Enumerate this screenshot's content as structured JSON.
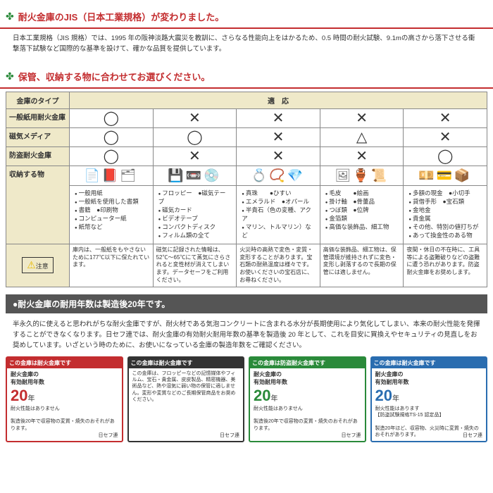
{
  "header1": {
    "title": "耐火金庫のJIS（日本工業規格）が変わりました。",
    "text": "日本工業規格（JIS 規格）では、1995 年の阪神淡路大震災を教訓に、さらなる性能向上をはかるため、0.5 時間の耐火試験、9.1mの高さから落下させる衝撃落下試験など国際的な基準を設けて、確かな品質を提供しています。"
  },
  "header2": {
    "title": "保管、収納する物に合わせてお選びください。"
  },
  "table": {
    "col_type": "金庫のタイプ",
    "col_compat": "適　応",
    "rows": [
      "一般紙用耐火金庫",
      "磁気メディア",
      "防盗耐火金庫"
    ],
    "storage_label": "収納する物",
    "caution_label": "注意",
    "items": {
      "c0": [
        "一般用紙",
        "一般紙を使用した書類",
        "書籍　●印刷物",
        "コンピューター紙",
        "紙幣など"
      ],
      "c1": [
        "フロッピー　●磁気テープ",
        "磁気カード",
        "ビデオテープ",
        "コンパクトディスク",
        "フィルム類の全て"
      ],
      "c2": [
        "真珠　　●ひすい",
        "エメラルド　●オパール",
        "半貴石（色の変種、アクア",
        "マリン、トルマリン）など"
      ],
      "c3": [
        "毛皮　　●絵画",
        "掛け軸　●骨董品",
        "つぼ類　●位牌",
        "金箔類",
        "高価な装飾品、細工物"
      ],
      "c4": [
        "多額の現金　●小切手",
        "貸借手形　●宝石類",
        "金地金",
        "貴金属",
        "その他、特別の値打ちが",
        "あって換金性のある物"
      ]
    },
    "notes": {
      "c0": "庫内は、一般紙をもやさないために177℃以下に保たれています。",
      "c1": "磁気に記録された情報は、52℃～65℃にて蒸気にさらされると変性材が消えてしまいます。データセーフをご利用ください。",
      "c2": "火災時の高熱で変色・変質・変形することがあります。宝石類の耐熱温度は様々です。お使いくださいの宝石店に、お尋ねください。",
      "c3": "高価な装飾品、細工物は、保管環境が維持されずに変色・変形し剥落するので長期の保管には適しません。",
      "c4": "夜間・休日の不在時に、工具等による盗難破りなどの盗難に遭う恐れがあります。防盗耐火金庫をお奨めします。"
    }
  },
  "bar": "●耐火金庫の耐用年数は製造後20年です。",
  "body_text": "半永久的に使えると思われがちな耐火金庫ですが、耐火材である気泡コンクリートに含まれる水分が長期使用により気化してしまい、本来の耐火性能を発揮することができなくなります。日セフ連では、耐火金庫の有効耐火耐用年数の基準を製造後 20 年として、これを目安に買換えやセキュリティの見直しをお奨めしています。いざという時のために、お使いになっている金庫の製造年数をご確認ください。",
  "cards": [
    {
      "border": "#c32d2f",
      "top_bg": "#c32d2f",
      "top": "この金庫は耐火金庫です",
      "num_color": "#c32d2f",
      "label": "耐火金庫の\n有効耐用年数",
      "num": "20",
      "unit": "年",
      "body": "耐火性能はありません\n\n製造後20年で収容物の変質・焼失のおそれがあります。",
      "brand": "日セフ連"
    },
    {
      "border": "#333",
      "top_bg": "#333",
      "top": "この金庫は耐火金庫です",
      "num_color": "#333",
      "label": "",
      "num": "",
      "unit": "",
      "body": "この金庫は、フロッピーなどの記憶媒体やフィルム、宝石・貴金属、皮皮製品、精密機器、美術品など、熱や湿気に弱い物の保管に適しません。変形や変質などのご長期保管商品をお奨めください。",
      "brand": "日セフ連"
    },
    {
      "border": "#2a8a3a",
      "top_bg": "#2a8a3a",
      "top": "この金庫は防盗耐火金庫です",
      "num_color": "#2a8a3a",
      "label": "耐火金庫の\n有効耐用年数",
      "num": "20",
      "unit": "年",
      "body": "耐火性能はありません\n\n製造後20年で収容物の変質・焼失のおそれがあります。",
      "brand": "日セフ連"
    },
    {
      "border": "#2a6db0",
      "top_bg": "#2a6db0",
      "top": "この金庫は耐火金庫です",
      "num_color": "#2a6db0",
      "label": "耐火金庫の\n有効耐用年数",
      "num": "20",
      "unit": "年",
      "body": "耐火性能はあります\n【防盗試験規格TS-15 認定品】\n\n製造20年ほど、収容物、火災時に変質・焼失のおそれがあります。",
      "brand": "日セフ連"
    }
  ]
}
